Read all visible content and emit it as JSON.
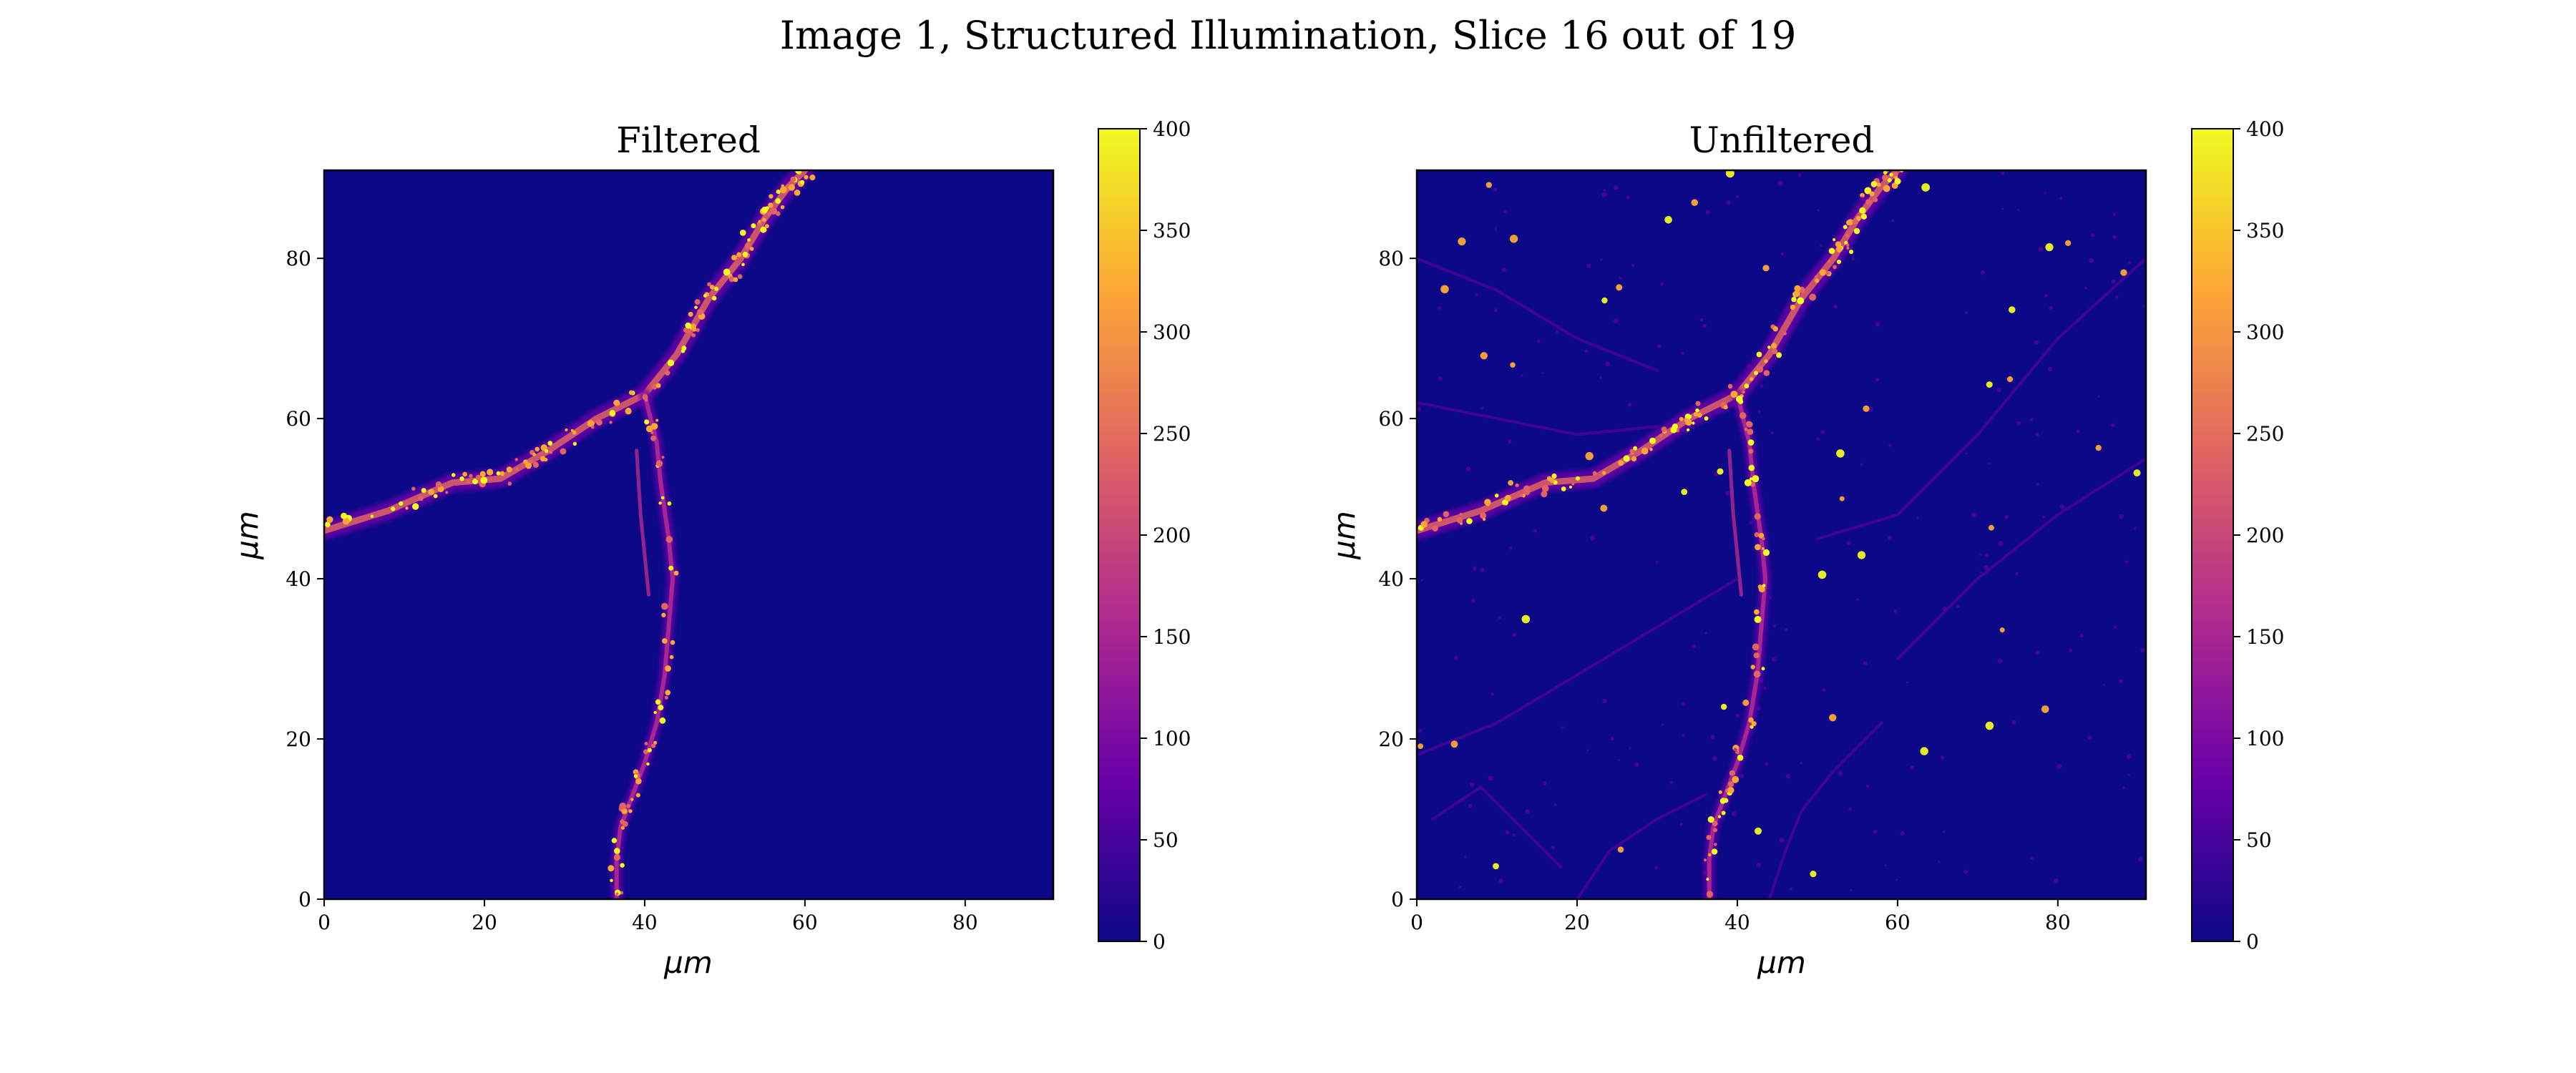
{
  "figure": {
    "title": "Image 1, Structured Illumination, Slice 16 out of 19"
  },
  "colors": {
    "background": "#0d0887",
    "cmap": [
      "#0d0887",
      "#6a00a8",
      "#b12a90",
      "#e16462",
      "#fca636",
      "#f0f921"
    ]
  },
  "chart_data": [
    {
      "type": "heatmap",
      "title": "Filtered",
      "xlabel": "μm",
      "ylabel": "μm",
      "xlim": [
        0,
        91
      ],
      "ylim": [
        0,
        91
      ],
      "xticks": [
        0,
        20,
        40,
        60,
        80
      ],
      "yticks": [
        0,
        20,
        40,
        60,
        80
      ],
      "colorbar": {
        "vmin": 0,
        "vmax": 400,
        "ticks": [
          0,
          50,
          100,
          150,
          200,
          250,
          300,
          350,
          400
        ],
        "cmap": "plasma"
      }
    },
    {
      "type": "heatmap",
      "title": "Unfiltered",
      "xlabel": "μm",
      "ylabel": "μm",
      "xlim": [
        0,
        91
      ],
      "ylim": [
        0,
        91
      ],
      "xticks": [
        0,
        20,
        40,
        60,
        80
      ],
      "yticks": [
        0,
        20,
        40,
        60,
        80
      ],
      "colorbar": {
        "vmin": 0,
        "vmax": 400,
        "ticks": [
          0,
          50,
          100,
          150,
          200,
          250,
          300,
          350,
          400
        ],
        "cmap": "plasma"
      }
    }
  ]
}
